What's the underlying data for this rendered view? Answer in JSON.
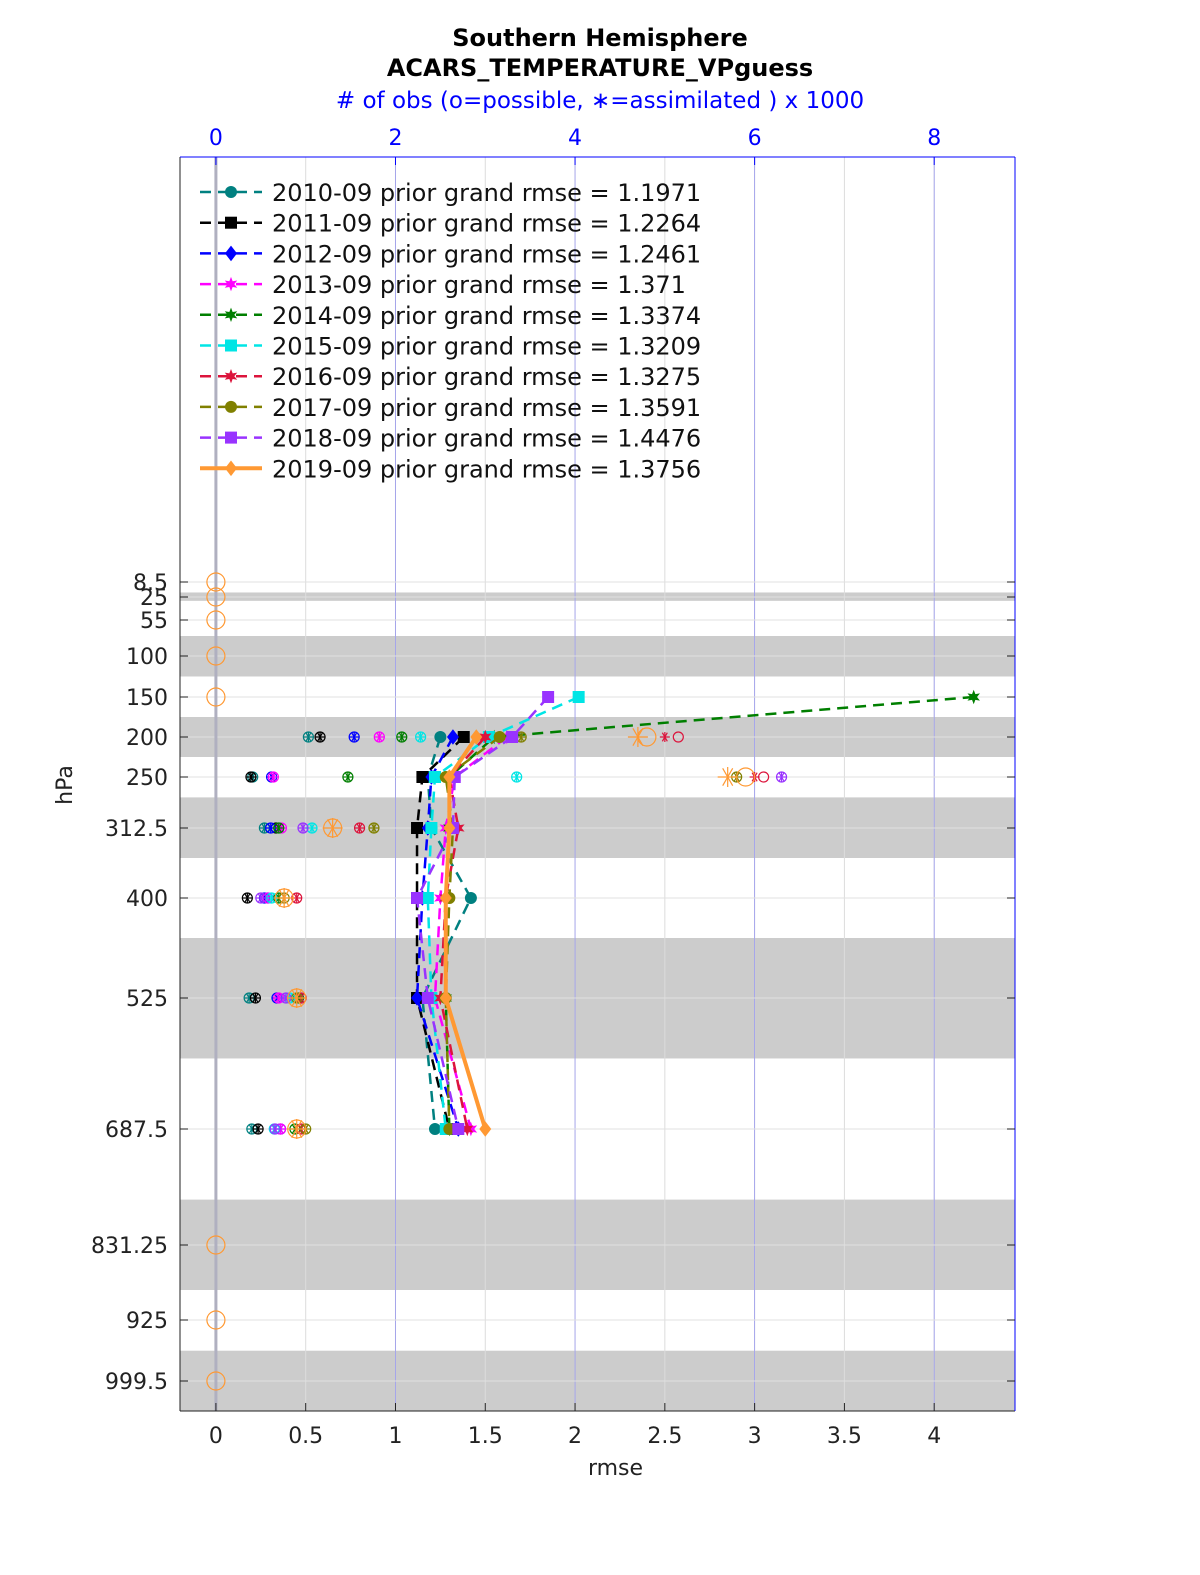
{
  "chart_data": {
    "type": "line",
    "title": "Southern Hemisphere",
    "subtitle": "ACARS_TEMPERATURE_VPguess",
    "top_axis_label": "# of obs (o=possible, ∗=assimilated ) x 1000",
    "xlabel": "rmse",
    "ylabel": "hPa",
    "xlim": [
      -0.2,
      4.45
    ],
    "top_xlim": [
      -0.4,
      8.9
    ],
    "x_ticks": [
      "0",
      "0.5",
      "1",
      "1.5",
      "2",
      "2.5",
      "3",
      "3.5",
      "4"
    ],
    "x_tick_values": [
      0,
      0.5,
      1,
      1.5,
      2,
      2.5,
      3,
      3.5,
      4
    ],
    "top_ticks": [
      "0",
      "2",
      "4",
      "6",
      "8"
    ],
    "top_tick_values": [
      0,
      2,
      4,
      6,
      8
    ],
    "y_levels": [
      8.5,
      25,
      55,
      100,
      150,
      200,
      250,
      312.5,
      400,
      525,
      687.5,
      831.25,
      925,
      999.5
    ],
    "y_tick_labels": [
      "8.5",
      "25",
      "55",
      "100",
      "150",
      "200",
      "250",
      "312.5",
      "400",
      "525",
      "687.5",
      "831.25",
      "925",
      "999.5"
    ],
    "shaded_bands_hPa": [
      [
        20,
        30
      ],
      [
        75,
        125
      ],
      [
        175,
        225
      ],
      [
        275,
        350
      ],
      [
        450,
        600
      ],
      [
        775,
        887.5
      ],
      [
        962.5,
        1037.5
      ]
    ],
    "series": [
      {
        "name": "2010-09",
        "legend": "2010-09 prior grand rmse = 1.1971",
        "color": "#008080",
        "marker": "circle",
        "dash": true,
        "rmse": {
          "200": 1.25,
          "250": 1.18,
          "312.5": 1.2,
          "400": 1.42,
          "525": 1.15,
          "687.5": 1.22
        },
        "obs_possible": {
          "200": 1.03,
          "250": 0.41,
          "312.5": 0.54,
          "400": 0.58,
          "525": 0.37,
          "687.5": 0.4
        },
        "obs_assim": {
          "200": 1.03,
          "250": 0.41,
          "312.5": 0.54,
          "400": 0.58,
          "525": 0.37,
          "687.5": 0.4
        }
      },
      {
        "name": "2011-09",
        "legend": "2011-09 prior grand rmse = 1.2264",
        "color": "#000000",
        "marker": "square",
        "dash": true,
        "rmse": {
          "200": 1.38,
          "250": 1.15,
          "312.5": 1.12,
          "400": 1.12,
          "525": 1.12,
          "687.5": 1.3
        },
        "obs_possible": {
          "200": 1.16,
          "250": 0.39,
          "312.5": 0.67,
          "400": 0.35,
          "525": 0.44,
          "687.5": 0.47
        },
        "obs_assim": {
          "200": 1.16,
          "250": 0.39,
          "312.5": 0.67,
          "400": 0.35,
          "525": 0.44,
          "687.5": 0.47
        }
      },
      {
        "name": "2012-09",
        "legend": "2012-09 prior grand rmse = 1.2461",
        "color": "#0000ff",
        "marker": "diamond",
        "dash": true,
        "rmse": {
          "200": 1.32,
          "250": 1.2,
          "312.5": 1.18,
          "400": 1.15,
          "525": 1.12,
          "687.5": 1.35
        },
        "obs_possible": {
          "200": 1.54,
          "250": 0.62,
          "312.5": 0.61,
          "400": 0.54,
          "525": 0.68,
          "687.5": 0.72
        },
        "obs_assim": {
          "200": 1.54,
          "250": 0.62,
          "312.5": 0.61,
          "400": 0.54,
          "525": 0.68,
          "687.5": 0.72
        }
      },
      {
        "name": "2013-09",
        "legend": "2013-09 prior grand rmse = 1.371",
        "color": "#ff00ff",
        "marker": "star",
        "dash": true,
        "rmse": {
          "200": 1.62,
          "250": 1.33,
          "312.5": 1.28,
          "400": 1.25,
          "525": 1.22,
          "687.5": 1.42
        },
        "obs_possible": {
          "200": 1.82,
          "250": 0.64,
          "312.5": 0.73,
          "400": 0.58,
          "525": 0.7,
          "687.5": 0.72
        },
        "obs_assim": {
          "200": 1.82,
          "250": 0.64,
          "312.5": 0.73,
          "400": 0.58,
          "525": 0.7,
          "687.5": 0.72
        }
      },
      {
        "name": "2014-09",
        "legend": "2014-09 prior grand rmse = 1.3374",
        "color": "#007f00",
        "marker": "hexagram",
        "dash": true,
        "rmse": {
          "150": 4.22,
          "200": 1.55,
          "250": 1.3,
          "312.5": 1.3,
          "400": 1.28,
          "525": 1.28,
          "687.5": 1.3
        },
        "obs_possible": {
          "200": 2.07,
          "250": 1.47,
          "312.5": 0.7,
          "400": 0.7,
          "525": 0.92,
          "687.5": 0.88
        },
        "obs_assim": {
          "200": 2.07,
          "250": 1.47,
          "312.5": 0.7,
          "400": 0.7,
          "525": 0.92,
          "687.5": 0.88
        }
      },
      {
        "name": "2015-09",
        "legend": "2015-09 prior grand rmse = 1.3209",
        "color": "#00e5e5",
        "marker": "square",
        "dash": true,
        "rmse": {
          "150": 2.02,
          "200": 1.52,
          "250": 1.22,
          "312.5": 1.2,
          "400": 1.18,
          "525": 1.2,
          "687.5": 1.28
        },
        "obs_possible": {
          "200": 2.28,
          "250": 3.35,
          "312.5": 1.07,
          "400": 0.62,
          "525": 0.82,
          "687.5": 0.65
        },
        "obs_assim": {
          "200": 2.28,
          "250": 3.35,
          "312.5": 1.07,
          "400": 0.62,
          "525": 0.82,
          "687.5": 0.65
        }
      },
      {
        "name": "2016-09",
        "legend": "2016-09 prior grand rmse = 1.3275",
        "color": "#dc143c",
        "marker": "star",
        "dash": true,
        "rmse": {
          "200": 1.5,
          "250": 1.3,
          "312.5": 1.35,
          "400": 1.28,
          "525": 1.25,
          "687.5": 1.4
        },
        "obs_possible": {
          "200": 5.15,
          "250": 6.1,
          "312.5": 1.6,
          "400": 0.9,
          "525": 0.95,
          "687.5": 0.95
        },
        "obs_assim": {
          "200": 5.0,
          "250": 6.0,
          "312.5": 1.6,
          "400": 0.9,
          "525": 0.95,
          "687.5": 0.95
        }
      },
      {
        "name": "2017-09",
        "legend": "2017-09 prior grand rmse = 1.3591",
        "color": "#808000",
        "marker": "circle",
        "dash": true,
        "rmse": {
          "200": 1.58,
          "250": 1.28,
          "312.5": 1.32,
          "400": 1.3,
          "525": 1.28,
          "687.5": 1.3
        },
        "obs_possible": {
          "200": 3.4,
          "250": 5.8,
          "312.5": 1.76,
          "400": 0.76,
          "525": 0.9,
          "687.5": 1.0
        },
        "obs_assim": {
          "200": 3.4,
          "250": 5.8,
          "312.5": 1.76,
          "400": 0.76,
          "525": 0.9,
          "687.5": 1.0
        }
      },
      {
        "name": "2018-09",
        "legend": "2018-09 prior grand rmse = 1.4476",
        "color": "#9933ff",
        "marker": "square",
        "dash": true,
        "rmse": {
          "150": 1.85,
          "200": 1.65,
          "250": 1.33,
          "312.5": 1.32,
          "400": 1.12,
          "525": 1.18,
          "687.5": 1.35
        },
        "obs_possible": {
          "200": 3.3,
          "250": 6.3,
          "312.5": 0.97,
          "400": 0.5,
          "525": 0.78,
          "687.5": 0.66
        },
        "obs_assim": {
          "200": 3.3,
          "250": 6.3,
          "312.5": 0.97,
          "400": 0.5,
          "525": 0.78,
          "687.5": 0.66
        }
      },
      {
        "name": "2019-09",
        "legend": "2019-09 prior grand rmse = 1.3756",
        "color": "#ff9933",
        "marker": "diamond",
        "dash": false,
        "rmse": {
          "200": 1.45,
          "250": 1.3,
          "312.5": 1.3,
          "400": 1.28,
          "525": 1.28,
          "687.5": 1.5
        },
        "obs_possible": {
          "8.5": 0,
          "25": 0,
          "55": 0,
          "100": 0,
          "150": 0,
          "200": 4.8,
          "250": 5.9,
          "312.5": 1.3,
          "400": 0.76,
          "525": 0.9,
          "687.5": 0.9,
          "831.25": 0,
          "925": 0,
          "999.5": 0
        },
        "obs_assim": {
          "200": 4.7,
          "250": 5.7,
          "312.5": 1.3,
          "400": 0.76,
          "525": 0.9,
          "687.5": 0.9
        }
      }
    ]
  }
}
